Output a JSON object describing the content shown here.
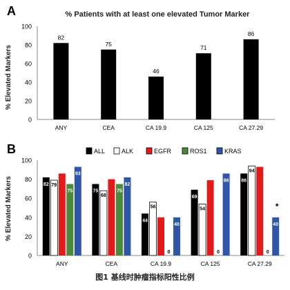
{
  "caption": "图1 基线时肿瘤指标阳性比例",
  "colors": {
    "ALL": "#000000",
    "ALK": "#ffffff",
    "EGFR": "#e11b1b",
    "ROS1": "#4a8a3a",
    "KRAS": "#2f56a8",
    "axis": "#888888"
  },
  "chart_data": [
    {
      "panel": "A",
      "type": "bar",
      "title": "% Patients with at least one elevated Tumor Marker",
      "ylabel": "% Elevated Markers",
      "xlabel": "",
      "categories": [
        "ANY",
        "CEA",
        "CA 19.9",
        "CA 125",
        "CA 27.29"
      ],
      "values": [
        82,
        75,
        46,
        71,
        86
      ],
      "data_labels": [
        "82",
        "75",
        "46",
        "71",
        "86"
      ],
      "ylim": [
        0,
        100
      ],
      "yticks": [
        0,
        20,
        40,
        60,
        80,
        100
      ],
      "ytick_labels": [
        "0",
        "20",
        "40",
        "60",
        "80",
        "100"
      ],
      "grid": false,
      "legend": "none"
    },
    {
      "panel": "B",
      "type": "bar",
      "ylabel": "% Elevated Markers",
      "xlabel": "",
      "categories": [
        "ANY",
        "CEA",
        "CA 19.9",
        "CA 125",
        "CA 27.29"
      ],
      "series": [
        {
          "name": "ALL",
          "values": [
            82,
            75,
            44,
            69,
            86
          ]
        },
        {
          "name": "ALK",
          "values": [
            79,
            68,
            56,
            54,
            94
          ]
        },
        {
          "name": "EGFR",
          "values": [
            86,
            80,
            40,
            79,
            93
          ]
        },
        {
          "name": "ROS1",
          "values": [
            75,
            75,
            0,
            0,
            0
          ]
        },
        {
          "name": "KRAS",
          "values": [
            93,
            82,
            40,
            86,
            40
          ]
        }
      ],
      "data_labels": [
        [
          "82",
          "79",
          "",
          "75",
          "93"
        ],
        [
          "75",
          "68",
          "",
          "75",
          "82"
        ],
        [
          "44",
          "56",
          "",
          "0",
          "40"
        ],
        [
          "69",
          "54",
          "",
          "0",
          "86"
        ],
        [
          "86",
          "94",
          "",
          "0",
          "40"
        ]
      ],
      "annotation": "*",
      "ylim": [
        0,
        100
      ],
      "yticks": [
        0,
        20,
        40,
        60,
        80,
        100
      ],
      "ytick_labels": [
        "0",
        "20",
        "40",
        "60",
        "80",
        "100"
      ],
      "grid": false,
      "legend": "top"
    }
  ]
}
